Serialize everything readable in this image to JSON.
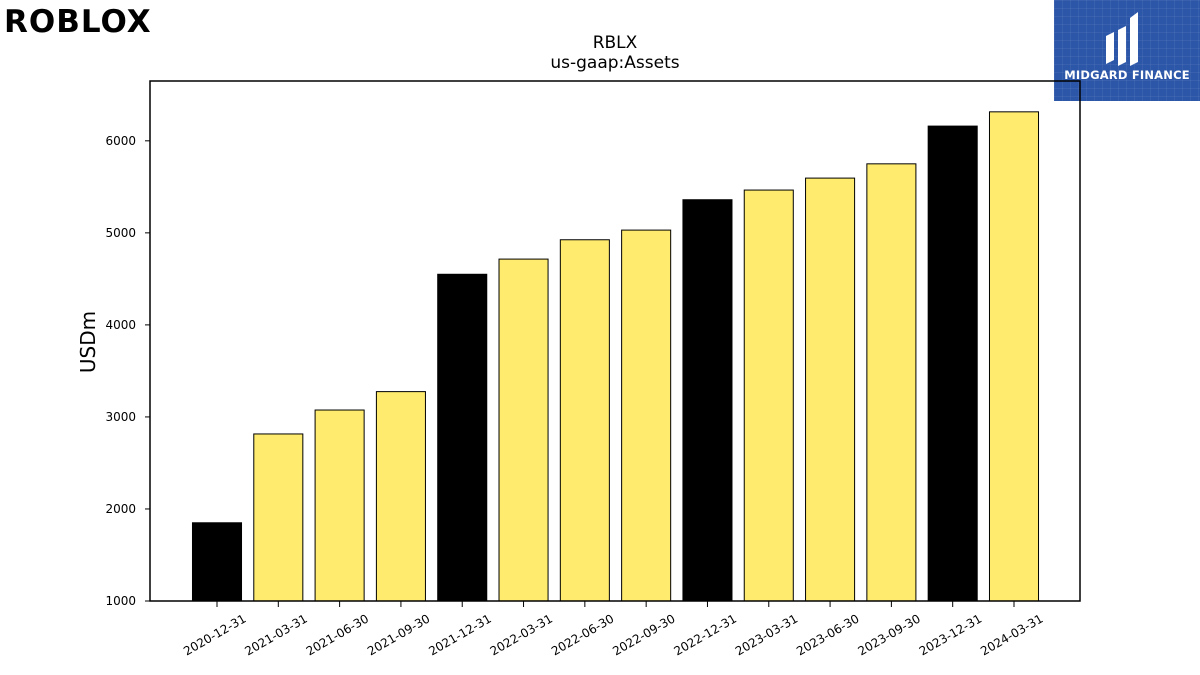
{
  "brand": {
    "logo_text": "ROBLOX",
    "badge_text": "MIDGARD FINANCE",
    "badge_color": "#2c56a8"
  },
  "chart_data": {
    "type": "bar",
    "title": "RBLX",
    "subtitle": "us-gaap:Assets",
    "xlabel": "",
    "ylabel": "USDm",
    "ylim": [
      1000,
      6650
    ],
    "yticks": [
      1000,
      2000,
      3000,
      4000,
      5000,
      6000
    ],
    "grid": false,
    "categories": [
      "2020-12-31",
      "2021-03-31",
      "2021-06-30",
      "2021-09-30",
      "2021-12-31",
      "2022-03-31",
      "2022-06-30",
      "2022-09-30",
      "2022-12-31",
      "2023-03-31",
      "2023-06-30",
      "2023-09-30",
      "2023-12-31",
      "2024-03-31"
    ],
    "values": [
      1850,
      2815,
      3075,
      3275,
      4550,
      4715,
      4925,
      5030,
      5360,
      5465,
      5595,
      5750,
      6160,
      6315
    ],
    "bar_colors": [
      "#000000",
      "#ffeb6e",
      "#ffeb6e",
      "#ffeb6e",
      "#000000",
      "#ffeb6e",
      "#ffeb6e",
      "#ffeb6e",
      "#000000",
      "#ffeb6e",
      "#ffeb6e",
      "#ffeb6e",
      "#000000",
      "#ffeb6e"
    ]
  }
}
